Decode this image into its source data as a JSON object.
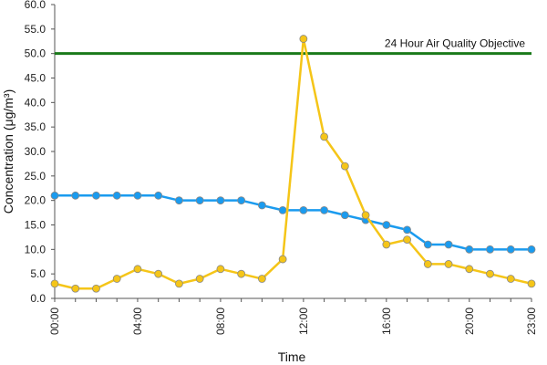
{
  "chart_data": {
    "type": "line",
    "xlabel": "Time",
    "ylabel": "Concentration (μg/m³)",
    "ylim": [
      0,
      60
    ],
    "ytick_step": 5,
    "ytick_labels": [
      "0.0",
      "5.0",
      "10.0",
      "15.0",
      "20.0",
      "25.0",
      "30.0",
      "35.0",
      "40.0",
      "45.0",
      "50.0",
      "55.0",
      "60.0"
    ],
    "x": [
      "00:00",
      "01:00",
      "02:00",
      "03:00",
      "04:00",
      "05:00",
      "06:00",
      "07:00",
      "08:00",
      "09:00",
      "10:00",
      "11:00",
      "12:00",
      "13:00",
      "14:00",
      "15:00",
      "16:00",
      "17:00",
      "18:00",
      "19:00",
      "20:00",
      "21:00",
      "22:00",
      "23:00"
    ],
    "xtick_labels": [
      "00:00",
      "04:00",
      "08:00",
      "12:00",
      "16:00",
      "20:00",
      "23:00"
    ],
    "grid": false,
    "series": [
      {
        "color": "#1a9bef",
        "values": [
          21,
          21,
          21,
          21,
          21,
          21,
          20,
          20,
          20,
          20,
          19,
          18,
          18,
          18,
          17,
          16,
          15,
          14,
          11,
          11,
          10,
          10,
          10,
          10
        ]
      },
      {
        "color": "#f5c518",
        "values": [
          3,
          2,
          2,
          4,
          6,
          5,
          3,
          4,
          6,
          5,
          4,
          8,
          53,
          33,
          27,
          17,
          11,
          12,
          7,
          7,
          6,
          5,
          4,
          3
        ]
      }
    ],
    "reference_line": {
      "value": 50,
      "label": "24 Hour Air Quality Objective",
      "color": "#1a7a1a"
    }
  }
}
